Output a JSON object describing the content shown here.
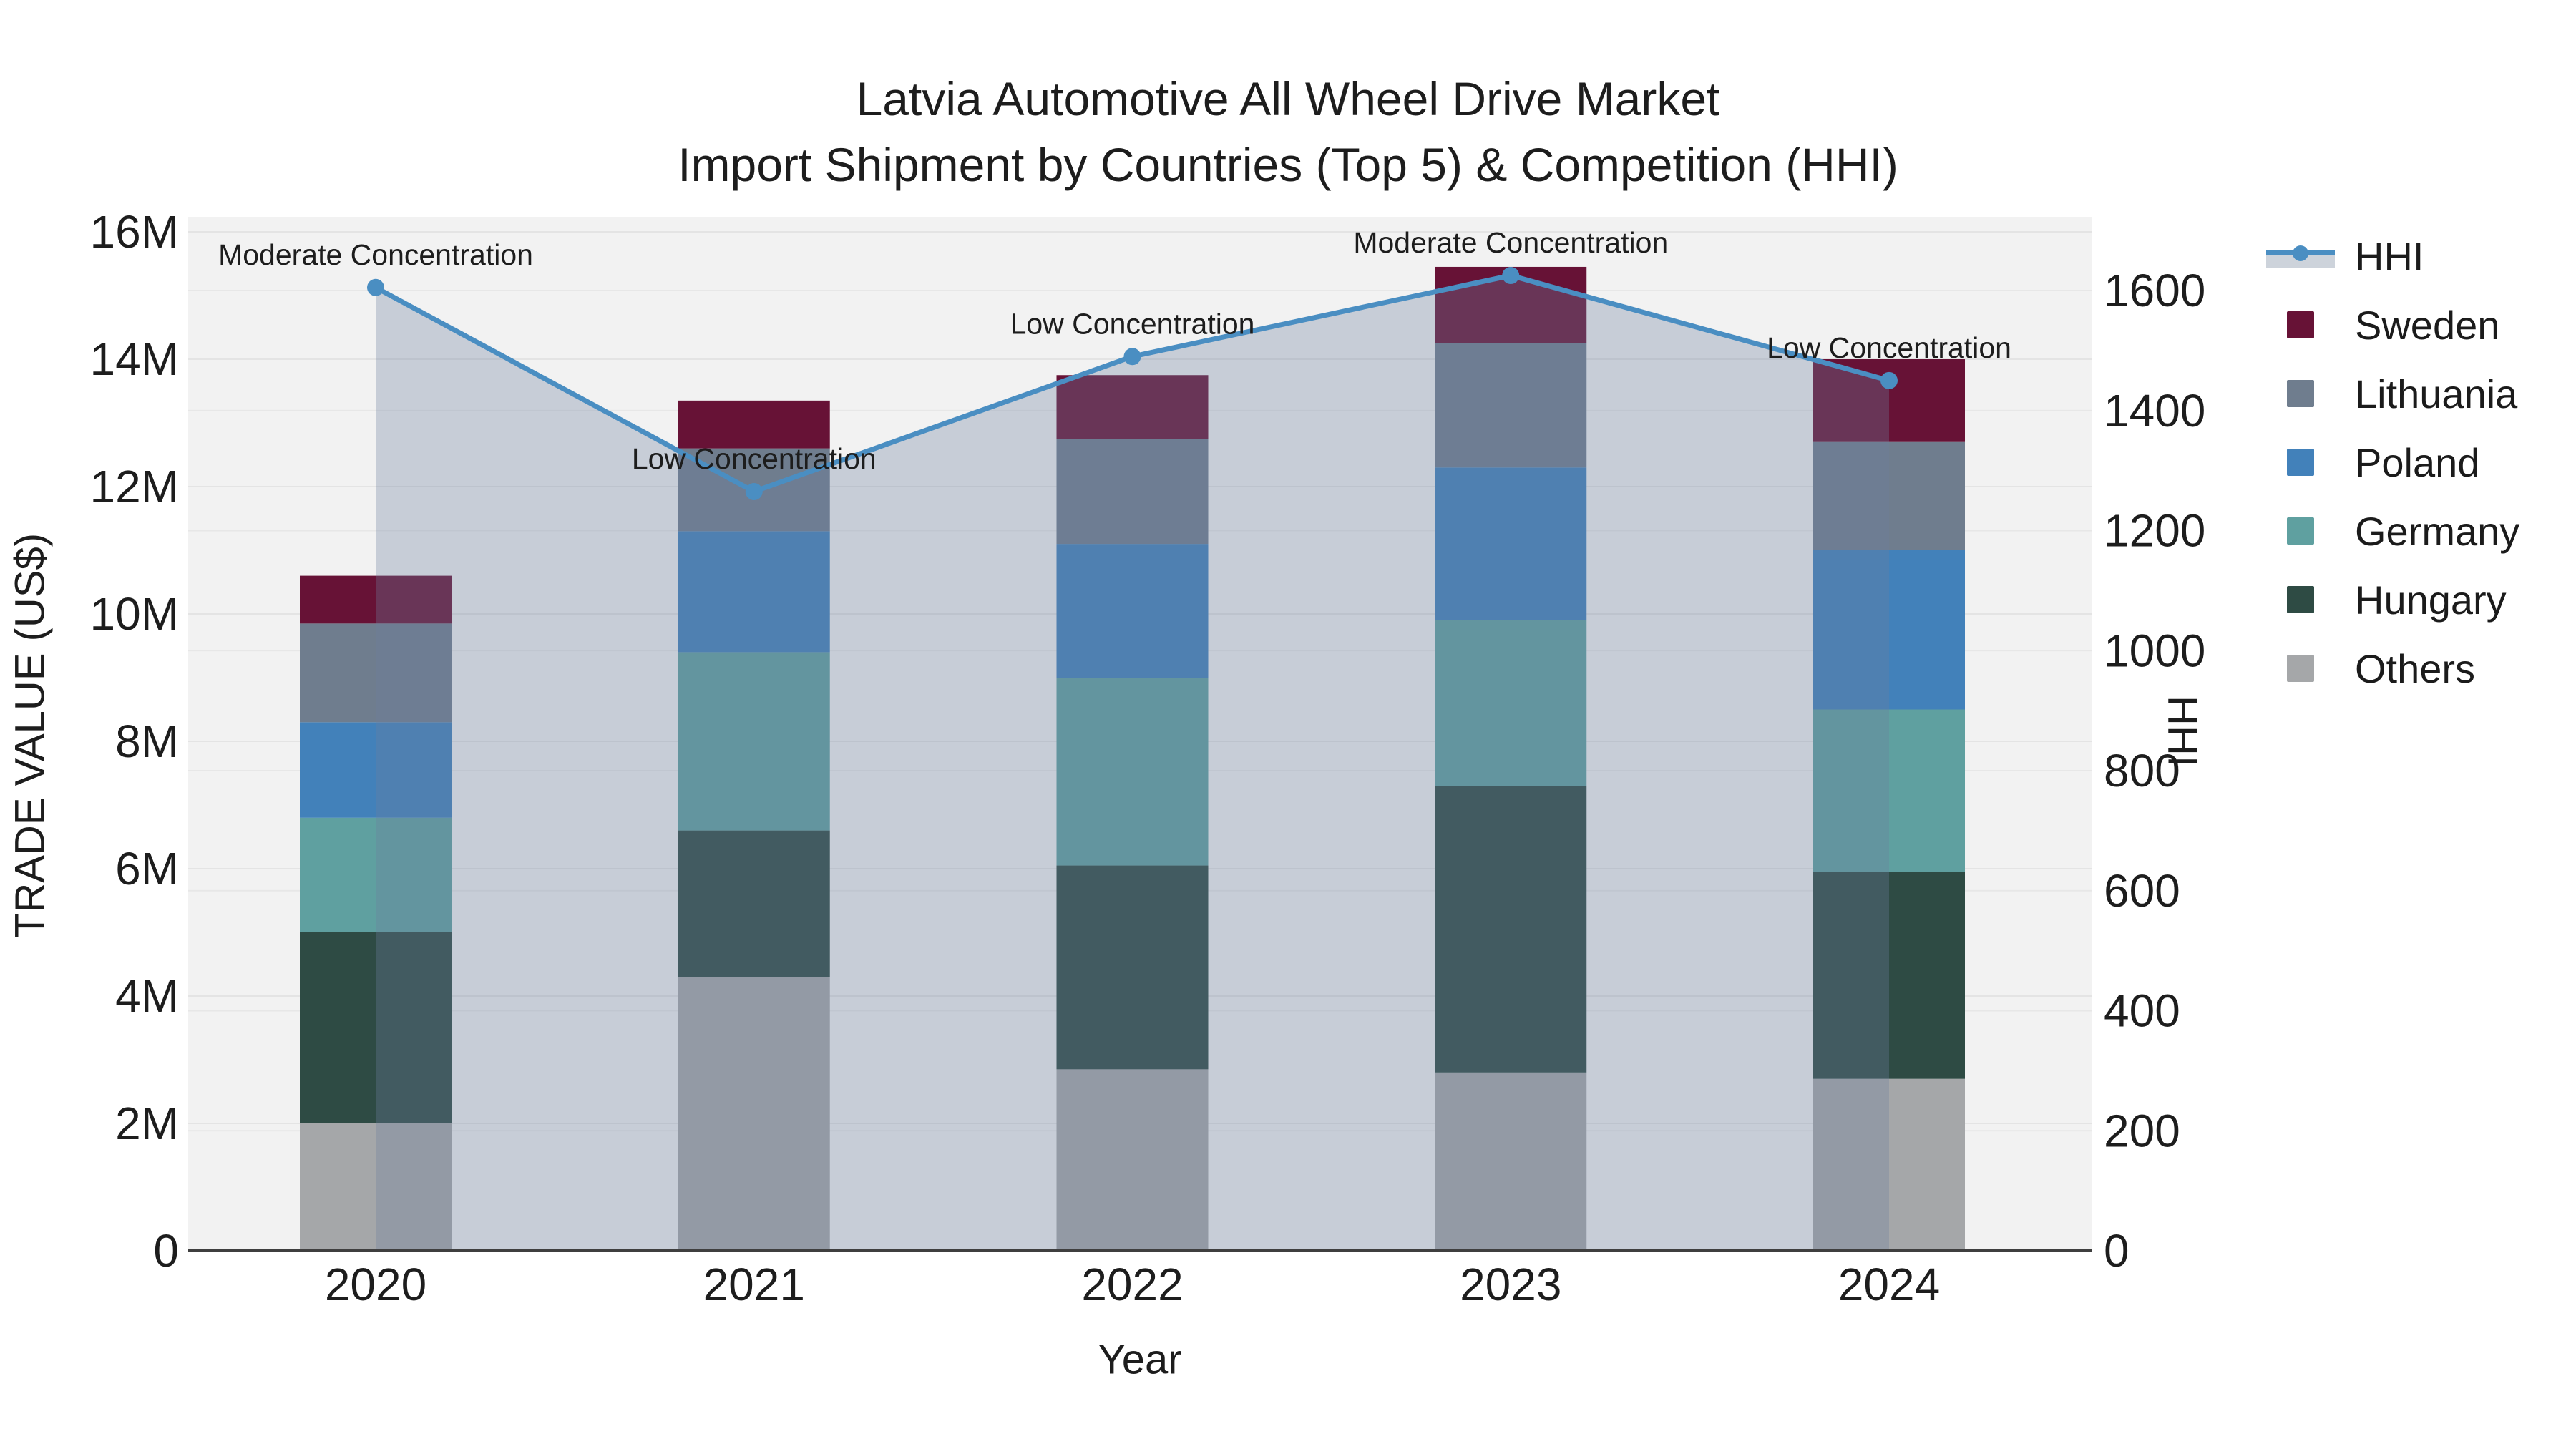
{
  "title": {
    "line1": "Latvia Automotive All Wheel Drive Market",
    "line2": "Import Shipment by Countries (Top 5) & Competition (HHI)"
  },
  "chart_data": {
    "type": "bar+line",
    "value_unit": "US$ millions",
    "categories": [
      "2020",
      "2021",
      "2022",
      "2023",
      "2024"
    ],
    "bar_series": [
      {
        "name": "Sweden",
        "color": "#671236",
        "values": [
          0.75,
          0.75,
          1.0,
          1.2,
          1.3
        ]
      },
      {
        "name": "Lithuania",
        "color": "#6f7d8e",
        "values": [
          1.55,
          1.3,
          1.65,
          1.95,
          1.7
        ]
      },
      {
        "name": "Poland",
        "color": "#4281ba",
        "values": [
          1.5,
          1.9,
          2.1,
          2.4,
          2.5
        ]
      },
      {
        "name": "Germany",
        "color": "#5fa0a0",
        "values": [
          1.8,
          2.8,
          2.95,
          2.6,
          2.55
        ]
      },
      {
        "name": "Hungary",
        "color": "#2e4b44",
        "values": [
          3.0,
          2.3,
          3.2,
          4.5,
          3.25
        ]
      },
      {
        "name": "Others",
        "color": "#a5a7a9",
        "values": [
          2.0,
          4.3,
          2.85,
          2.8,
          2.7
        ]
      }
    ],
    "stack_order_bottom_to_top": [
      "Others",
      "Hungary",
      "Germany",
      "Poland",
      "Lithuania",
      "Sweden"
    ],
    "line_series": {
      "name": "HHI",
      "color": "#4a8ec2",
      "fill_color": "rgba(110,126,160,0.32)",
      "values": [
        1605,
        1265,
        1490,
        1625,
        1450
      ]
    },
    "annotations": [
      "Moderate Concentration",
      "Low Concentration",
      "Low Concentration",
      "Moderate Concentration",
      "Low Concentration"
    ],
    "y_left": {
      "title": "TRADE VALUE (US$)",
      "ticks": [
        "0",
        "2M",
        "4M",
        "6M",
        "8M",
        "10M",
        "12M",
        "14M",
        "16M"
      ],
      "tick_values": [
        0,
        2,
        4,
        6,
        8,
        10,
        12,
        14,
        16
      ],
      "range": [
        0,
        16
      ]
    },
    "y_right": {
      "title": "HHI",
      "ticks": [
        "0",
        "200",
        "400",
        "600",
        "800",
        "1000",
        "1200",
        "1400",
        "1600"
      ],
      "tick_values": [
        0,
        200,
        400,
        600,
        800,
        1000,
        1200,
        1400,
        1600
      ],
      "range": [
        0,
        1600
      ]
    },
    "x_axis": {
      "title": "Year"
    },
    "plot_background": "#f2f2f2",
    "grid": true,
    "legend_position": "right"
  },
  "legend": {
    "items": [
      {
        "label": "HHI",
        "type": "line"
      },
      {
        "label": "Sweden",
        "type": "box",
        "color": "#671236"
      },
      {
        "label": "Lithuania",
        "type": "box",
        "color": "#6f7d8e"
      },
      {
        "label": "Poland",
        "type": "box",
        "color": "#4281ba"
      },
      {
        "label": "Germany",
        "type": "box",
        "color": "#5fa0a0"
      },
      {
        "label": "Hungary",
        "type": "box",
        "color": "#2e4b44"
      },
      {
        "label": "Others",
        "type": "box",
        "color": "#a5a7a9"
      }
    ]
  }
}
